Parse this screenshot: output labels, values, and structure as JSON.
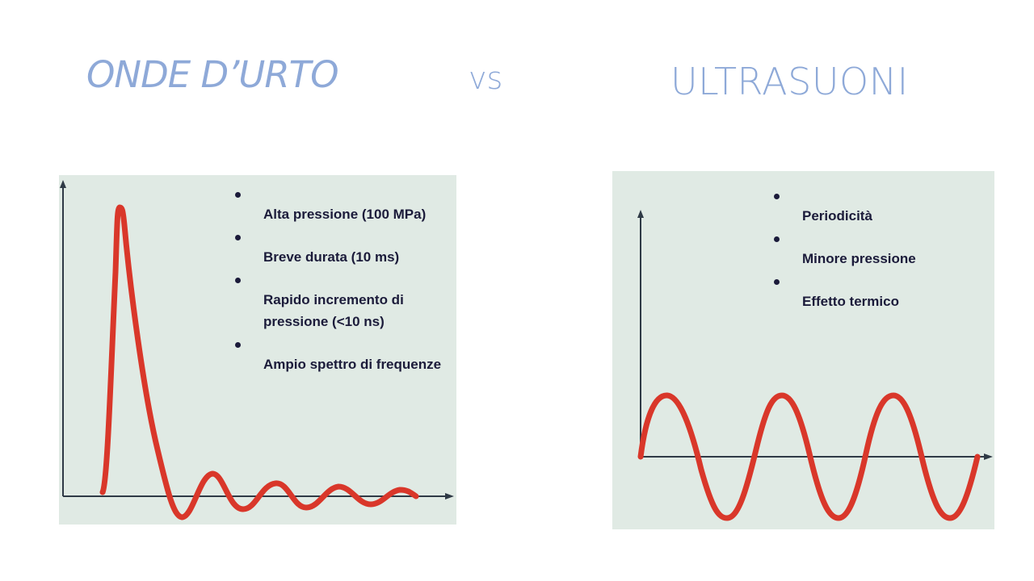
{
  "header": {
    "left_title": "ONDE D’URTO",
    "vs": "vs",
    "right_title": "ULTRASUONI"
  },
  "left_panel": {
    "bullets": [
      "Alta pressione (100 MPa)",
      "Breve durata (10 ms)",
      "Rapido incremento di pressione (<10 ns)",
      "Ampio spettro di frequenze"
    ]
  },
  "right_panel": {
    "bullets": [
      "Periodicità",
      "Minore pressione",
      "Effetto termico"
    ]
  },
  "colors": {
    "title": "#8ea9d8",
    "panel_bg": "#e0eae4",
    "wave": "#d9372a",
    "axis": "#2f3a46",
    "bullet_text": "#1b1b3a"
  }
}
